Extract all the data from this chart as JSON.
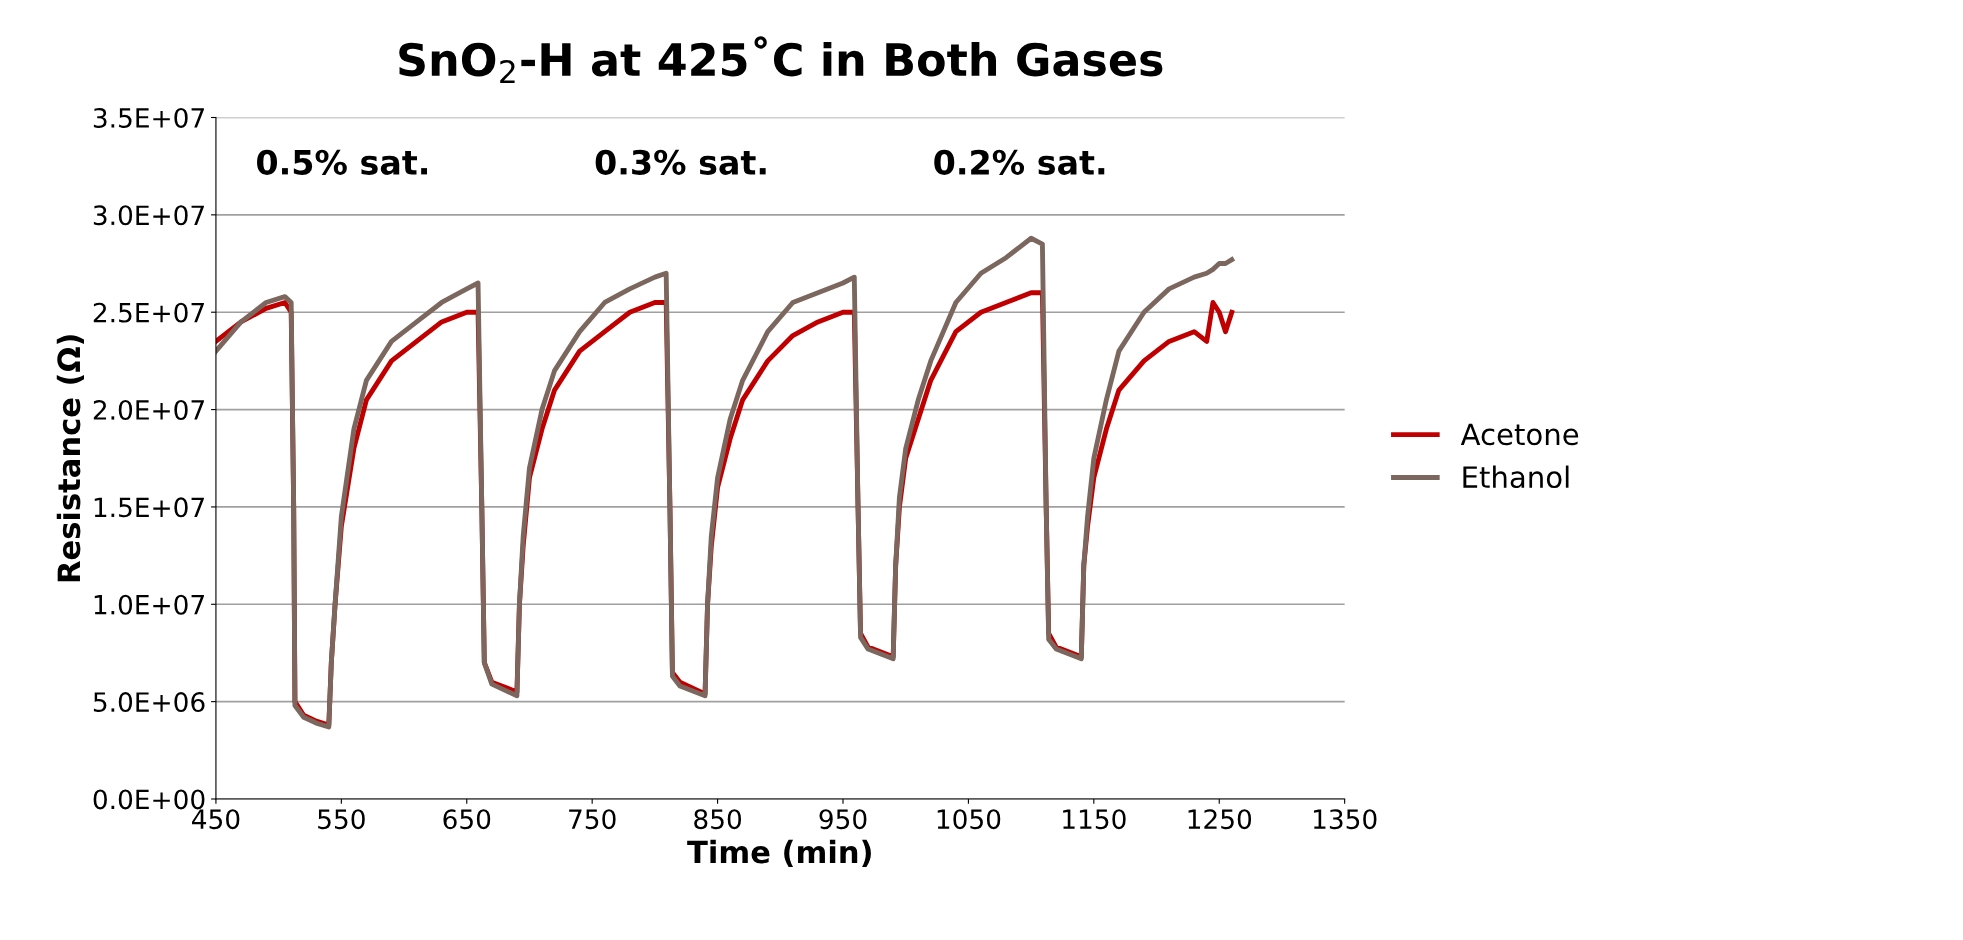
{
  "chart_data": {
    "type": "line",
    "title": "SnO$_{2}$-H at 425˚C in Both Gases",
    "xlabel": "Time (min)",
    "ylabel": "Resistance (Ω)",
    "x": [
      450,
      470,
      490,
      505,
      510,
      512,
      513,
      520,
      530,
      540,
      542,
      545,
      550,
      560,
      570,
      590,
      610,
      630,
      650,
      659,
      662,
      664,
      670,
      690,
      692,
      695,
      700,
      710,
      720,
      740,
      760,
      780,
      800,
      809,
      812,
      814,
      820,
      840,
      842,
      845,
      850,
      860,
      870,
      890,
      910,
      930,
      950,
      959,
      962,
      964,
      970,
      990,
      992,
      995,
      1000,
      1010,
      1020,
      1040,
      1060,
      1080,
      1100,
      1109,
      1112,
      1114,
      1120,
      1140,
      1142,
      1145,
      1150,
      1160,
      1170,
      1190,
      1210,
      1230,
      1240,
      1245,
      1250,
      1255,
      1260
    ],
    "series": [
      {
        "name": "Acetone",
        "color": "#c00000",
        "values": [
          23500000,
          24500000,
          25200000,
          25500000,
          25000000,
          15000000,
          5000000,
          4300000,
          4000000,
          3800000,
          7000000,
          10000000,
          14000000,
          18000000,
          20500000,
          22500000,
          23500000,
          24500000,
          25000000,
          25000000,
          15000000,
          7000000,
          6000000,
          5500000,
          10000000,
          13000000,
          16500000,
          19000000,
          21000000,
          23000000,
          24000000,
          25000000,
          25500000,
          25500000,
          15000000,
          6500000,
          6000000,
          5400000,
          10000000,
          13000000,
          16000000,
          18500000,
          20500000,
          22500000,
          23800000,
          24500000,
          25000000,
          25000000,
          15000000,
          8500000,
          7800000,
          7300000,
          12000000,
          15000000,
          17500000,
          19500000,
          21500000,
          24000000,
          25000000,
          25500000,
          26000000,
          26000000,
          15000000,
          8500000,
          7800000,
          7300000,
          12000000,
          14000000,
          16500000,
          19000000,
          21000000,
          22500000,
          23500000,
          24000000,
          23500000,
          25500000,
          25000000,
          24000000,
          25000000
        ]
      },
      {
        "name": "Ethanol",
        "color": "#7b675e",
        "values": [
          23000000,
          24500000,
          25500000,
          25800000,
          25500000,
          15000000,
          4800000,
          4200000,
          3900000,
          3700000,
          7000000,
          10000000,
          14500000,
          19000000,
          21500000,
          23500000,
          24500000,
          25500000,
          26200000,
          26500000,
          15000000,
          7000000,
          5900000,
          5300000,
          10000000,
          13500000,
          17000000,
          20000000,
          22000000,
          24000000,
          25500000,
          26200000,
          26800000,
          27000000,
          15000000,
          6300000,
          5800000,
          5300000,
          10000000,
          13500000,
          16500000,
          19500000,
          21500000,
          24000000,
          25500000,
          26000000,
          26500000,
          26800000,
          15000000,
          8300000,
          7700000,
          7200000,
          12000000,
          15500000,
          18000000,
          20500000,
          22500000,
          25500000,
          27000000,
          27800000,
          28800000,
          28500000,
          15000000,
          8200000,
          7700000,
          7200000,
          12000000,
          14500000,
          17500000,
          20500000,
          23000000,
          25000000,
          26200000,
          26800000,
          27000000,
          27200000,
          27500000,
          27500000,
          27700000
        ]
      }
    ],
    "xlim": [
      450,
      1350
    ],
    "xticks": [
      450,
      550,
      650,
      750,
      850,
      950,
      1050,
      1150,
      1250,
      1350
    ],
    "ylim": [
      0,
      35000000
    ],
    "yticks": [
      {
        "value": 0,
        "label": "0.0E+00"
      },
      {
        "value": 5000000,
        "label": "5.0E+06"
      },
      {
        "value": 10000000,
        "label": "1.0E+07"
      },
      {
        "value": 15000000,
        "label": "1.5E+07"
      },
      {
        "value": 20000000,
        "label": "2.0E+07"
      },
      {
        "value": 25000000,
        "label": "2.5E+07"
      },
      {
        "value": 30000000,
        "label": "3.0E+07"
      },
      {
        "value": 35000000,
        "label": "3.5E+07"
      }
    ],
    "grid": "y",
    "legend": "right",
    "marker": "none",
    "line_style": "solid",
    "annotations": [
      "0.5% sat.",
      "0.3% sat.",
      "0.2% sat."
    ]
  }
}
